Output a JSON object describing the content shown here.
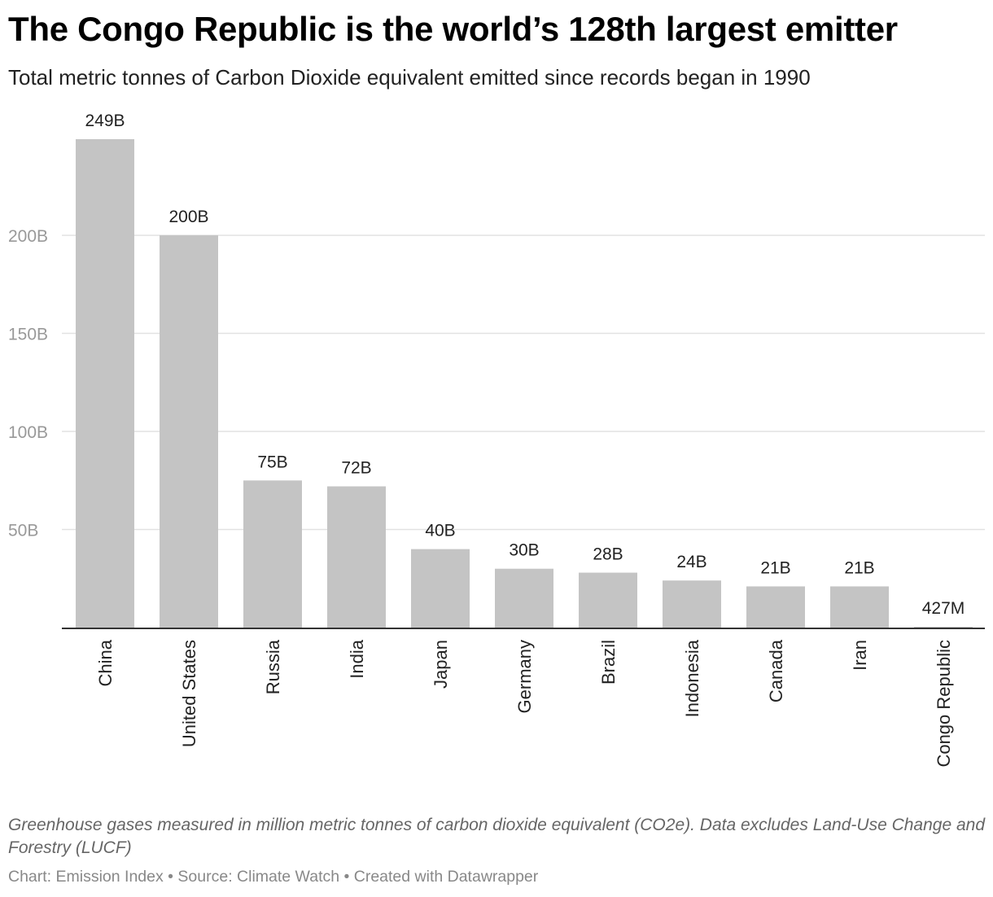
{
  "header": {
    "title": "The Congo Republic is the world’s 128th largest emitter",
    "subtitle": "Total metric tonnes of Carbon Dioxide equivalent emitted since records began in 1990"
  },
  "notes": "Greenhouse gases measured in million metric tonnes of carbon dioxide equivalent (CO2e). Data excludes Land-Use Change and Forestry (LUCF)",
  "footer": "Chart: Emission Index • Source: Climate Watch • Created with Datawrapper",
  "chart_data": {
    "type": "bar",
    "title": "The Congo Republic is the world’s 128th largest emitter",
    "subtitle": "Total metric tonnes of Carbon Dioxide equivalent emitted since records began in 1990",
    "xlabel": "",
    "ylabel": "",
    "categories": [
      "China",
      "United States",
      "Russia",
      "India",
      "Japan",
      "Germany",
      "Brazil",
      "Indonesia",
      "Canada",
      "Iran",
      "Congo Republic"
    ],
    "values": [
      249,
      200,
      75,
      72,
      40,
      30,
      28,
      24,
      21,
      21,
      0.427
    ],
    "value_labels": [
      "249B",
      "200B",
      "75B",
      "72B",
      "40B",
      "30B",
      "28B",
      "24B",
      "21B",
      "21B",
      "427M"
    ],
    "y_ticks": [
      50,
      100,
      150,
      200
    ],
    "y_tick_labels": [
      "50B",
      "100B",
      "150B",
      "200B"
    ],
    "ylim": [
      0,
      249
    ],
    "grid": true,
    "legend": "none",
    "bar_color": "#c4c4c4",
    "gridline_color": "#e2e2e2",
    "axis_color": "#333333"
  }
}
